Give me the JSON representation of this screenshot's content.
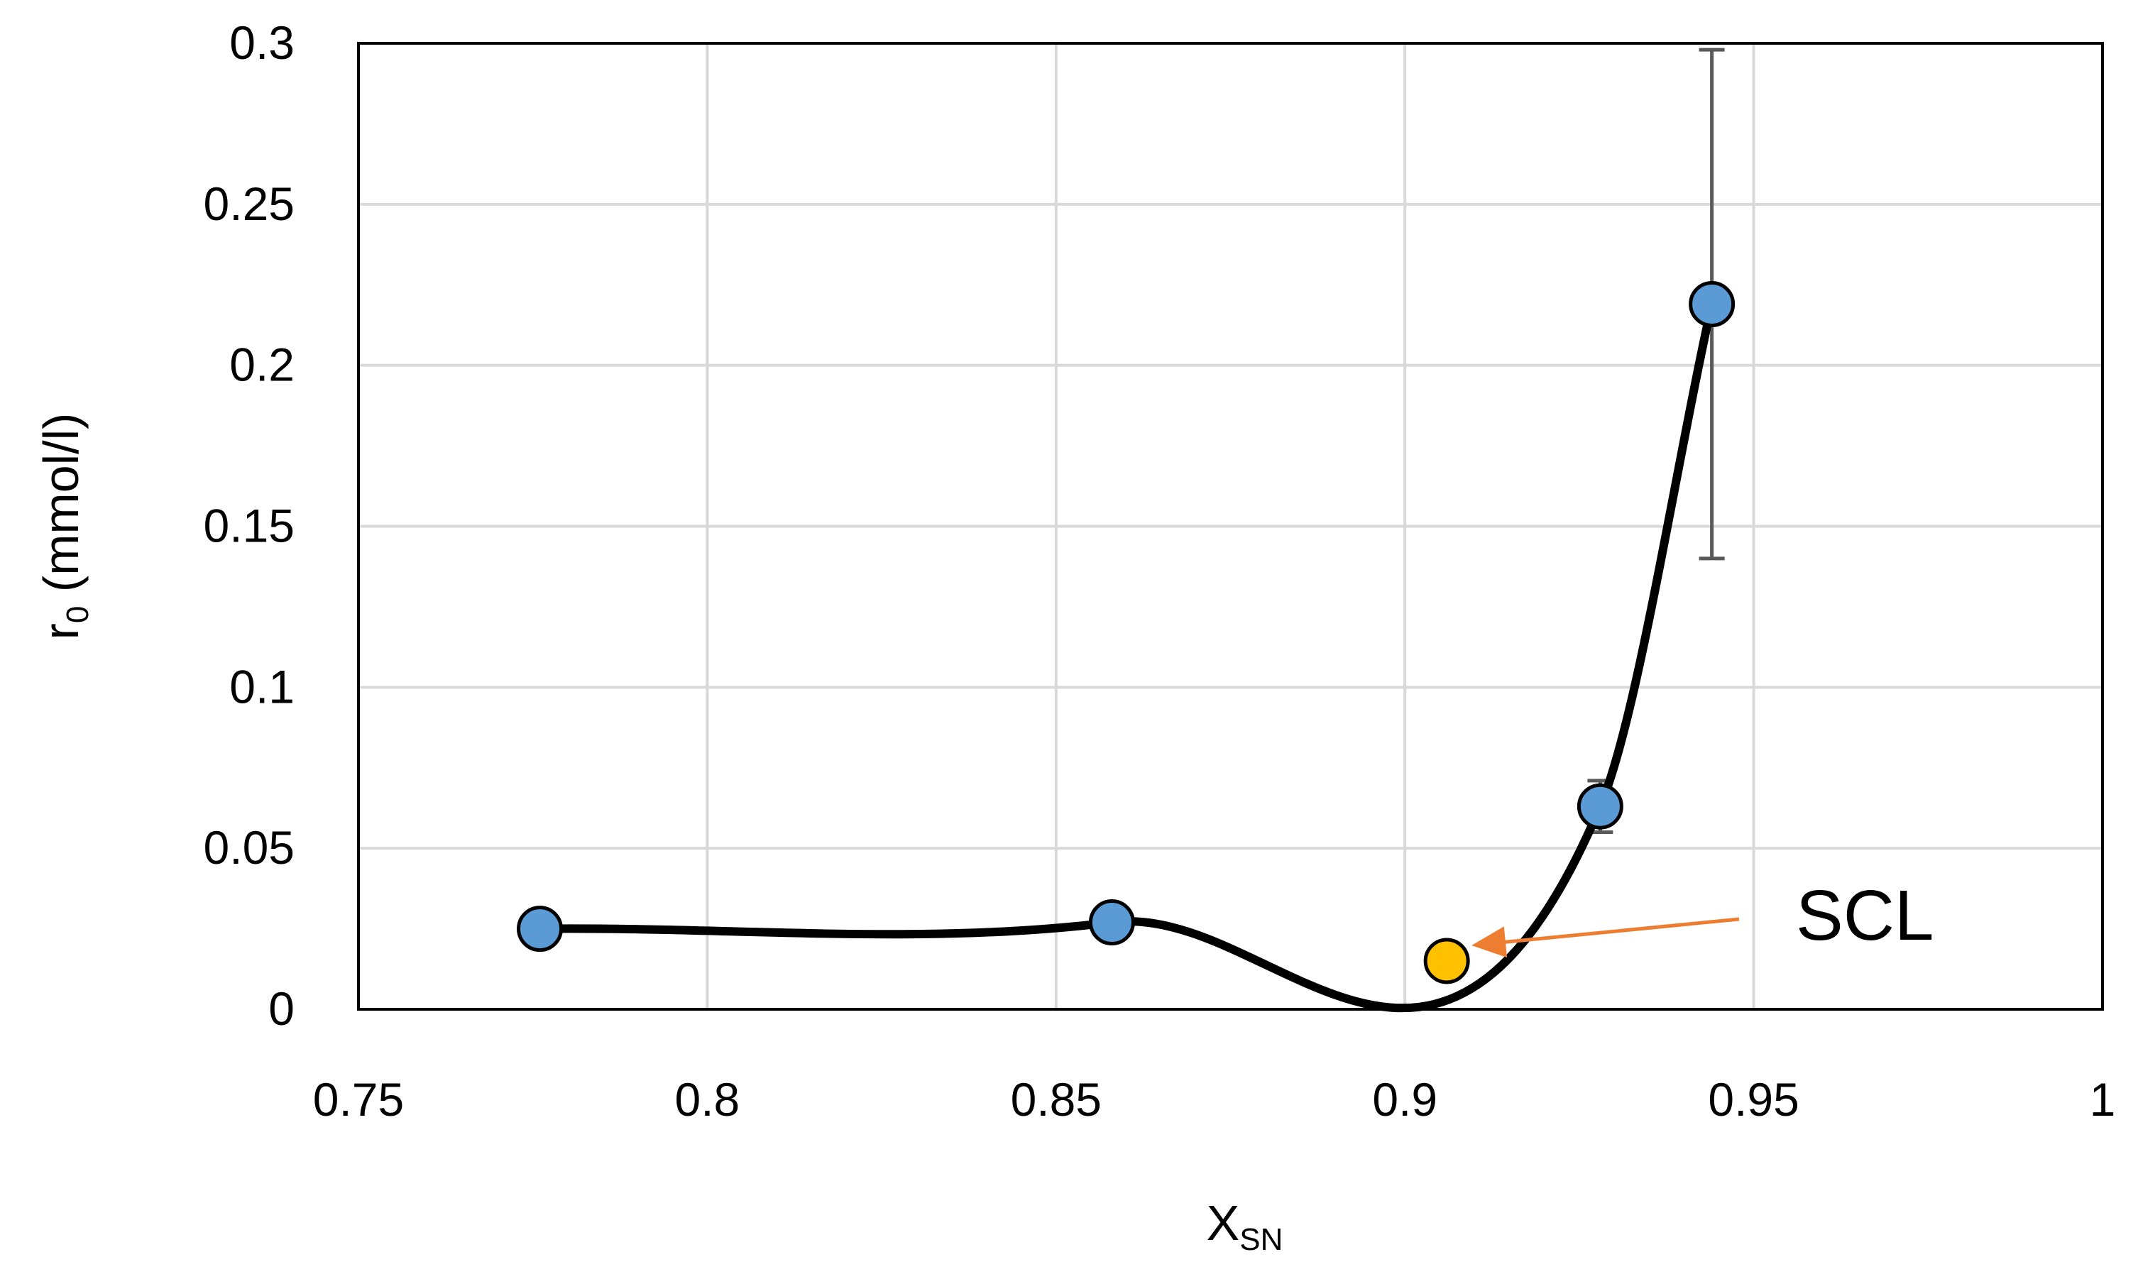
{
  "chart_data": {
    "type": "scatter",
    "title": "",
    "xlabel": {
      "main": "X",
      "sub": "SN"
    },
    "ylabel": {
      "main": "r",
      "sub": "0",
      "rest": " (mmol/l)"
    },
    "xlim": [
      0.75,
      1.0
    ],
    "ylim": [
      0,
      0.3
    ],
    "xticks": [
      0.75,
      0.8,
      0.85,
      0.9,
      0.95,
      1.0
    ],
    "xtick_labels": [
      "0.75",
      "0.8",
      "0.85",
      "0.9",
      "0.95",
      "1"
    ],
    "yticks": [
      0,
      0.05,
      0.1,
      0.15,
      0.2,
      0.25,
      0.3
    ],
    "ytick_labels": [
      "0",
      "0.05",
      "0.1",
      "0.15",
      "0.2",
      "0.25",
      "0.3"
    ],
    "grid": true,
    "legend": "none",
    "series": [
      {
        "points": [
          {
            "x": 0.776,
            "y": 0.025,
            "err_low": 0.0,
            "err_high": 0.0
          },
          {
            "x": 0.858,
            "y": 0.027,
            "err_low": 0.0,
            "err_high": 0.0
          },
          {
            "x": 0.928,
            "y": 0.063,
            "err_low": 0.008,
            "err_high": 0.008
          },
          {
            "x": 0.944,
            "y": 0.219,
            "err_low": 0.079,
            "err_high": 0.079
          }
        ],
        "color": "#5b9bd5",
        "trend_line": true,
        "trend_color": "#000000"
      },
      {
        "points": [
          {
            "x": 0.906,
            "y": 0.015
          }
        ],
        "color": "#ffc000"
      }
    ],
    "annotations": [
      {
        "text": "SCL",
        "arrow_color": "#ed7d31",
        "target_x": 0.906,
        "target_y": 0.015
      }
    ]
  }
}
